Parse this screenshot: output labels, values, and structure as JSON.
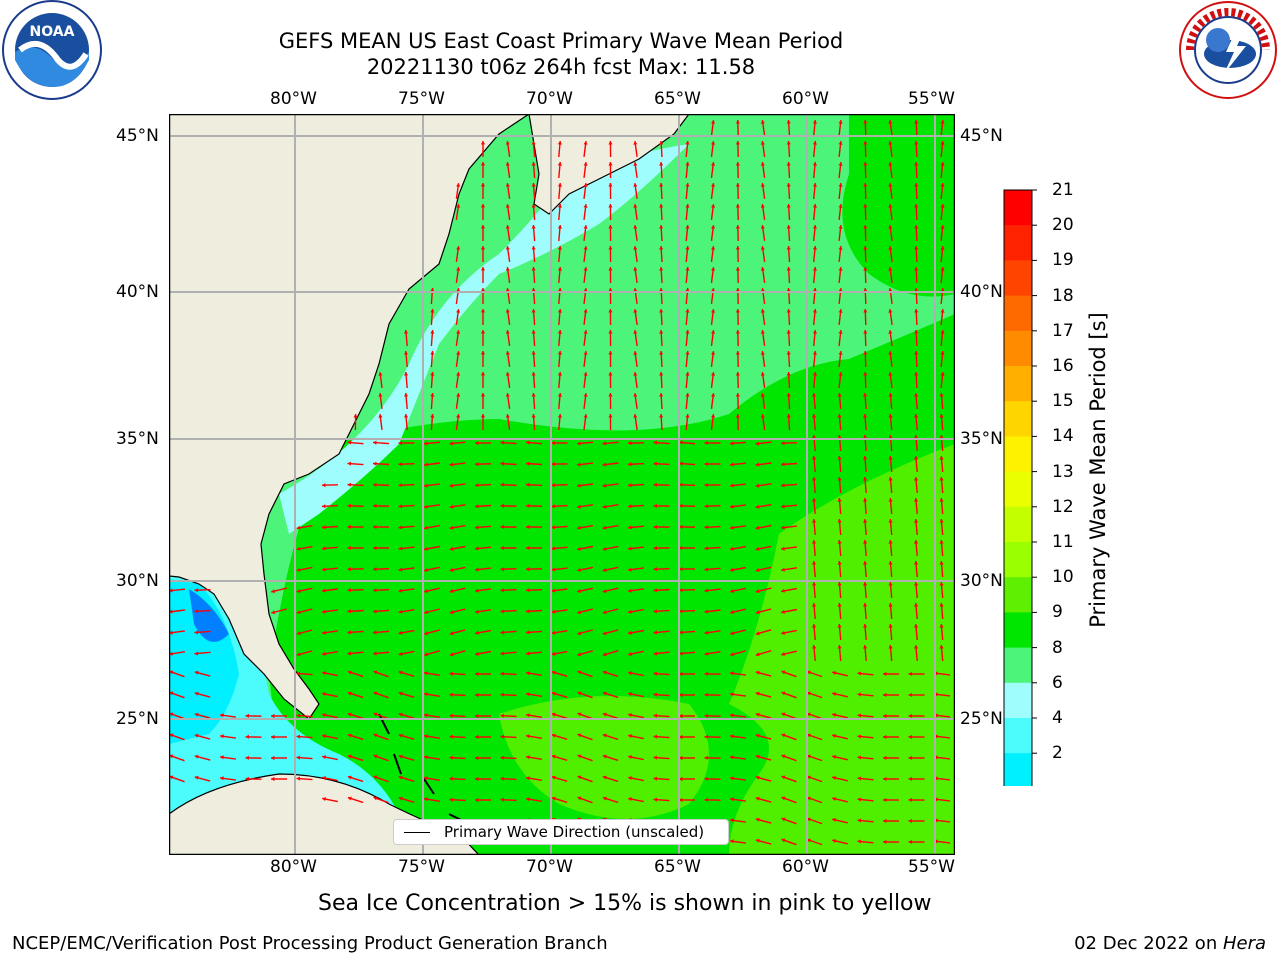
{
  "title": {
    "line1": "GEFS MEAN US East Coast Primary Wave Mean Period",
    "line2": "20221130 t06z 264h fcst   Max: 11.58"
  },
  "logos": {
    "left": {
      "name": "noaa-logo",
      "text": "NOAA"
    },
    "right": {
      "name": "nws-logo",
      "text": "NATIONAL WEATHER SERVICE"
    }
  },
  "map": {
    "lon_ticks": [
      "80°W",
      "75°W",
      "70°W",
      "65°W",
      "60°W",
      "55°W"
    ],
    "lat_ticks": [
      "45°N",
      "40°N",
      "35°N",
      "30°N",
      "25°N"
    ],
    "legend": "Primary Wave Direction (unscaled)",
    "land_color": "#efedde",
    "arrow_color": "#ff0000",
    "grid_color": "#b0b0b0"
  },
  "colorbar": {
    "label": "Primary Wave Mean Period [s]",
    "ticks": [
      "21",
      "20",
      "19",
      "18",
      "17",
      "16",
      "15",
      "14",
      "13",
      "12",
      "11",
      "10",
      "9",
      "8",
      "6",
      "4",
      "2"
    ],
    "colors": [
      "#ff0000",
      "#ff2200",
      "#ff4400",
      "#ff6a00",
      "#ff8c00",
      "#ffaf00",
      "#ffd500",
      "#fff200",
      "#eaff00",
      "#c4ff00",
      "#9aff00",
      "#5ef000",
      "#00e600",
      "#4cf57a",
      "#a0fdfd",
      "#4cfbfb",
      "#00f0ff",
      "#0080ff",
      "#0000f0"
    ]
  },
  "caption": "Sea Ice Concentration > 15% is shown in pink to yellow",
  "footer": {
    "left": "NCEP/EMC/Verification Post Processing Product Generation Branch",
    "right_prefix": "02 Dec 2022 on ",
    "right_host": "Hera"
  }
}
